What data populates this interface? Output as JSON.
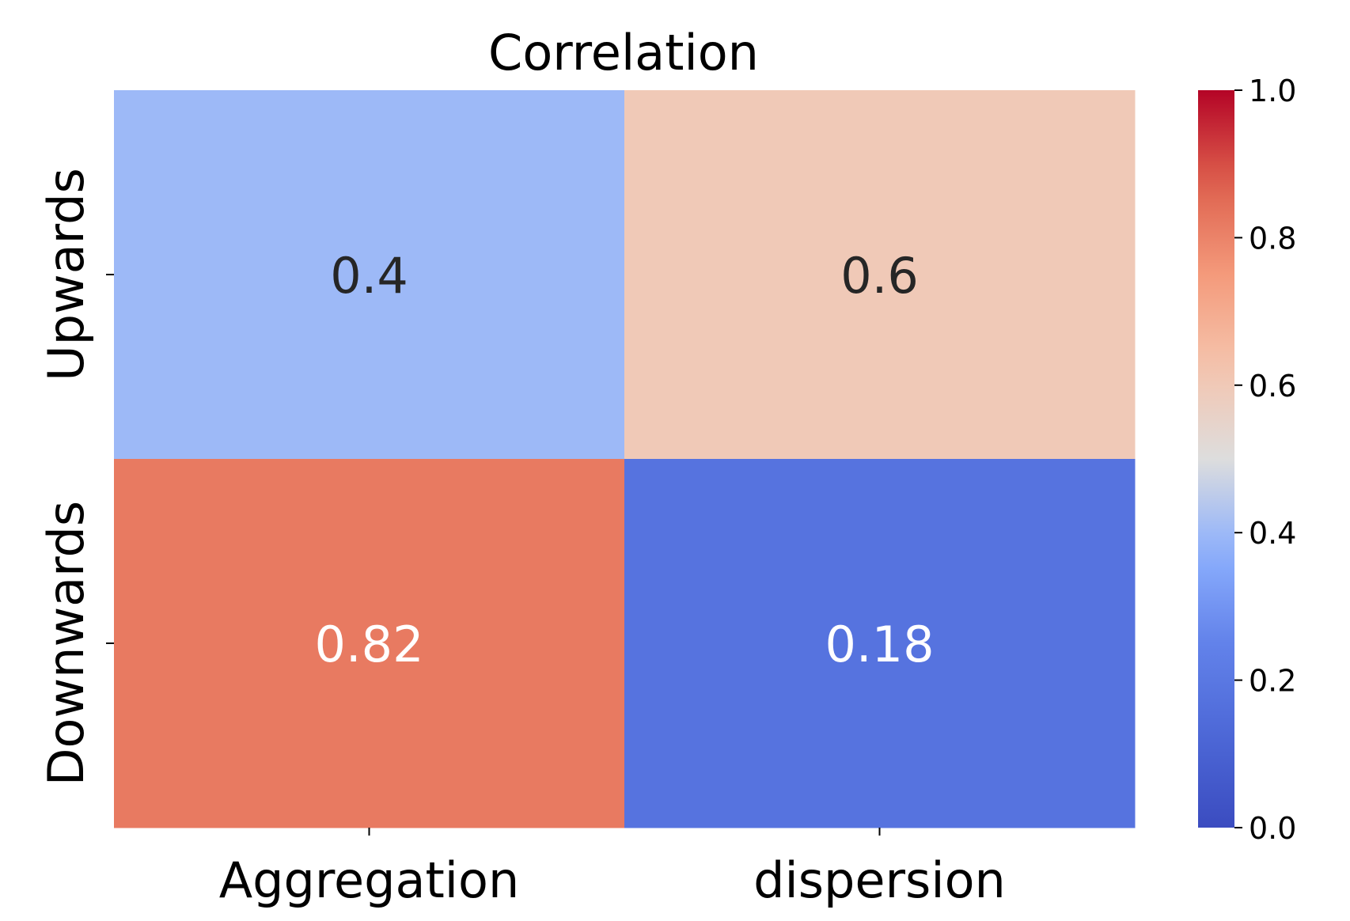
{
  "chart_data": {
    "type": "heatmap",
    "title": "Correlation",
    "rows": [
      "Upwards",
      "Downwards"
    ],
    "columns": [
      "Aggregation",
      "dispersion"
    ],
    "values": [
      [
        0.4,
        0.6
      ],
      [
        0.82,
        0.18
      ]
    ],
    "annotations": [
      [
        "0.4",
        "0.6"
      ],
      [
        "0.82",
        "0.18"
      ]
    ],
    "colormap": "coolwarm",
    "vmin": 0.0,
    "vmax": 1.0,
    "colorbar_ticks": [
      0.0,
      0.2,
      0.4,
      0.6,
      0.8,
      1.0
    ],
    "colorbar_tick_labels": [
      "0.0",
      "0.2",
      "0.4",
      "0.6",
      "0.8",
      "1.0"
    ]
  }
}
